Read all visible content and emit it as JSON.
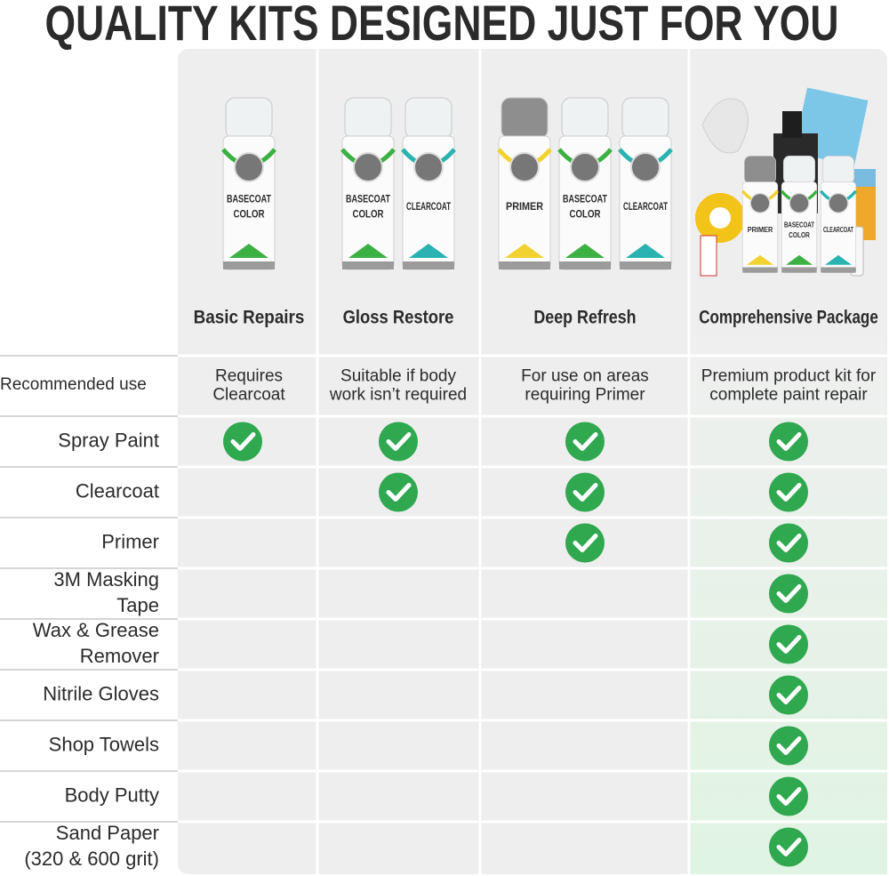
{
  "title": "QUALITY KITS DESIGNED JUST FOR YOU",
  "columns": [
    {
      "name": "Basic Repairs",
      "cans": [
        {
          "label": [
            "BASECOAT",
            "COLOR"
          ],
          "color": "#3cb043"
        }
      ]
    },
    {
      "name": "Gloss Restore",
      "cans": [
        {
          "label": [
            "BASECOAT",
            "COLOR"
          ],
          "color": "#3cb043"
        },
        {
          "label": [
            "CLEARCOAT"
          ],
          "color": "#2ab3b0"
        }
      ]
    },
    {
      "name": "Deep Refresh",
      "cans": [
        {
          "label": [
            "PRIMER"
          ],
          "color": "#f2d230"
        },
        {
          "label": [
            "BASECOAT",
            "COLOR"
          ],
          "color": "#3cb043"
        },
        {
          "label": [
            "CLEARCOAT"
          ],
          "color": "#2ab3b0"
        }
      ]
    },
    {
      "name": "Comprehensive Package",
      "cans": [
        {
          "label": [
            "PRIMER"
          ],
          "color": "#f2d230"
        },
        {
          "label": [
            "BASECOAT",
            "COLOR"
          ],
          "color": "#3cb043"
        },
        {
          "label": [
            "CLEARCOAT"
          ],
          "color": "#2ab3b0"
        }
      ]
    }
  ],
  "recommended_use": {
    "label": [
      "Recommended use"
    ],
    "values": [
      [
        "Requires",
        "Clearcoat"
      ],
      [
        "Suitable if body",
        "work isn’t required"
      ],
      [
        "For use on areas",
        "requiring Primer"
      ],
      [
        "Premium product kit for",
        "complete paint repair"
      ]
    ]
  },
  "rows": [
    {
      "label": [
        "Spray Paint"
      ],
      "checks": [
        true,
        true,
        true,
        true
      ]
    },
    {
      "label": [
        "Clearcoat"
      ],
      "checks": [
        false,
        true,
        true,
        true
      ]
    },
    {
      "label": [
        "Primer"
      ],
      "checks": [
        false,
        false,
        true,
        true
      ]
    },
    {
      "label": [
        "3M Masking",
        "Tape"
      ],
      "checks": [
        false,
        false,
        false,
        true
      ]
    },
    {
      "label": [
        "Wax & Grease",
        "Remover"
      ],
      "checks": [
        false,
        false,
        false,
        true
      ]
    },
    {
      "label": [
        "Nitrile Gloves"
      ],
      "checks": [
        false,
        false,
        false,
        true
      ]
    },
    {
      "label": [
        "Shop Towels"
      ],
      "checks": [
        false,
        false,
        false,
        true
      ]
    },
    {
      "label": [
        "Body Putty"
      ],
      "checks": [
        false,
        false,
        false,
        true
      ]
    },
    {
      "label": [
        "Sand Paper",
        "(320 & 600 grit)"
      ],
      "checks": [
        false,
        false,
        false,
        true
      ]
    }
  ]
}
